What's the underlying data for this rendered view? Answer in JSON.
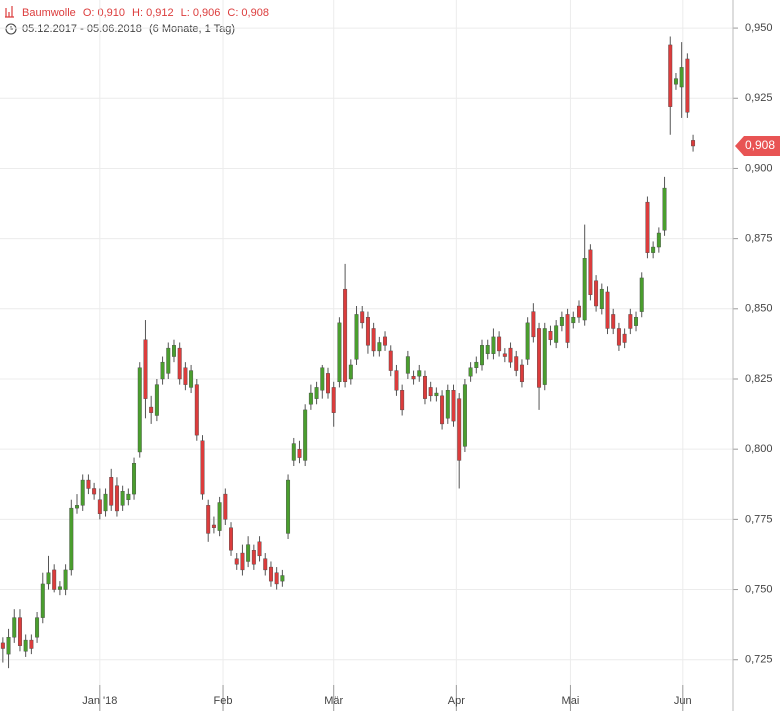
{
  "chart_data": {
    "type": "candlestick",
    "title": "Baumwolle",
    "ohlc_labels": [
      "O: 0,910",
      "H: 0,912",
      "L: 0,906",
      "C: 0,908"
    ],
    "subtitle": "05.12.2017 - 05.06.2018",
    "period": "(6 Monate, 1 Tag)",
    "up_color": "#4a9e2e",
    "down_color": "#dc3c3c",
    "open": [
      0.731,
      0.727,
      0.733,
      0.74,
      0.728,
      0.732,
      0.733,
      0.74,
      0.752,
      0.757,
      0.75,
      0.75,
      0.757,
      0.779,
      0.78,
      0.789,
      0.786,
      0.782,
      0.778,
      0.79,
      0.787,
      0.78,
      0.782,
      0.784,
      0.799,
      0.839,
      0.815,
      0.812,
      0.825,
      0.827,
      0.833,
      0.836,
      0.829,
      0.822,
      0.823,
      0.803,
      0.78,
      0.773,
      0.771,
      0.784,
      0.772,
      0.761,
      0.763,
      0.76,
      0.764,
      0.767,
      0.761,
      0.758,
      0.756,
      0.753,
      0.77,
      0.796,
      0.8,
      0.796,
      0.816,
      0.818,
      0.821,
      0.827,
      0.822,
      0.824,
      0.857,
      0.825,
      0.832,
      0.849,
      0.847,
      0.843,
      0.835,
      0.84,
      0.835,
      0.828,
      0.821,
      0.827,
      0.826,
      0.826,
      0.826,
      0.822,
      0.819,
      0.819,
      0.811,
      0.821,
      0.818,
      0.801,
      0.826,
      0.829,
      0.83,
      0.834,
      0.834,
      0.84,
      0.834,
      0.836,
      0.833,
      0.83,
      0.832,
      0.849,
      0.843,
      0.823,
      0.842,
      0.838,
      0.844,
      0.848,
      0.845,
      0.851,
      0.846,
      0.871,
      0.86,
      0.85,
      0.856,
      0.848,
      0.843,
      0.841,
      0.848,
      0.844,
      0.849,
      0.888,
      0.87,
      0.872,
      0.878,
      0.944,
      0.93,
      0.929,
      0.939,
      0.91
    ],
    "high": [
      0.733,
      0.736,
      0.743,
      0.743,
      0.734,
      0.734,
      0.742,
      0.756,
      0.762,
      0.759,
      0.753,
      0.759,
      0.782,
      0.784,
      0.791,
      0.791,
      0.788,
      0.786,
      0.786,
      0.793,
      0.79,
      0.787,
      0.786,
      0.797,
      0.831,
      0.846,
      0.819,
      0.825,
      0.833,
      0.838,
      0.839,
      0.838,
      0.831,
      0.83,
      0.825,
      0.805,
      0.782,
      0.776,
      0.783,
      0.786,
      0.774,
      0.763,
      0.766,
      0.769,
      0.766,
      0.769,
      0.763,
      0.76,
      0.758,
      0.757,
      0.791,
      0.804,
      0.803,
      0.816,
      0.823,
      0.824,
      0.83,
      0.829,
      0.824,
      0.847,
      0.866,
      0.832,
      0.851,
      0.851,
      0.849,
      0.845,
      0.84,
      0.842,
      0.837,
      0.83,
      0.823,
      0.835,
      0.828,
      0.83,
      0.828,
      0.824,
      0.822,
      0.821,
      0.823,
      0.823,
      0.82,
      0.825,
      0.831,
      0.833,
      0.839,
      0.839,
      0.843,
      0.842,
      0.836,
      0.838,
      0.835,
      0.832,
      0.847,
      0.852,
      0.845,
      0.845,
      0.844,
      0.846,
      0.849,
      0.85,
      0.849,
      0.853,
      0.88,
      0.873,
      0.862,
      0.859,
      0.858,
      0.85,
      0.845,
      0.843,
      0.85,
      0.849,
      0.863,
      0.89,
      0.874,
      0.879,
      0.897,
      0.947,
      0.934,
      0.945,
      0.941,
      0.912
    ],
    "low": [
      0.724,
      0.722,
      0.731,
      0.728,
      0.726,
      0.727,
      0.731,
      0.738,
      0.75,
      0.749,
      0.748,
      0.748,
      0.755,
      0.777,
      0.778,
      0.784,
      0.782,
      0.775,
      0.776,
      0.778,
      0.776,
      0.778,
      0.78,
      0.782,
      0.797,
      0.811,
      0.809,
      0.81,
      0.823,
      0.825,
      0.831,
      0.823,
      0.821,
      0.82,
      0.803,
      0.782,
      0.767,
      0.77,
      0.769,
      0.773,
      0.762,
      0.757,
      0.755,
      0.758,
      0.757,
      0.76,
      0.755,
      0.751,
      0.75,
      0.751,
      0.768,
      0.794,
      0.795,
      0.794,
      0.814,
      0.816,
      0.818,
      0.818,
      0.808,
      0.822,
      0.822,
      0.823,
      0.83,
      0.843,
      0.834,
      0.833,
      0.833,
      0.835,
      0.826,
      0.819,
      0.812,
      0.825,
      0.823,
      0.824,
      0.816,
      0.817,
      0.817,
      0.807,
      0.809,
      0.808,
      0.786,
      0.799,
      0.824,
      0.827,
      0.828,
      0.832,
      0.832,
      0.833,
      0.831,
      0.829,
      0.826,
      0.822,
      0.83,
      0.838,
      0.814,
      0.821,
      0.837,
      0.836,
      0.842,
      0.836,
      0.843,
      0.845,
      0.844,
      0.853,
      0.849,
      0.848,
      0.841,
      0.841,
      0.835,
      0.836,
      0.841,
      0.842,
      0.847,
      0.868,
      0.868,
      0.87,
      0.876,
      0.912,
      0.928,
      0.918,
      0.918,
      0.906
    ],
    "close": [
      0.729,
      0.733,
      0.74,
      0.73,
      0.732,
      0.729,
      0.74,
      0.752,
      0.756,
      0.75,
      0.751,
      0.757,
      0.779,
      0.78,
      0.789,
      0.786,
      0.784,
      0.777,
      0.784,
      0.78,
      0.778,
      0.785,
      0.784,
      0.795,
      0.829,
      0.818,
      0.813,
      0.823,
      0.831,
      0.836,
      0.837,
      0.825,
      0.823,
      0.828,
      0.805,
      0.784,
      0.77,
      0.772,
      0.781,
      0.775,
      0.764,
      0.759,
      0.757,
      0.766,
      0.759,
      0.762,
      0.757,
      0.753,
      0.752,
      0.755,
      0.789,
      0.802,
      0.797,
      0.814,
      0.82,
      0.822,
      0.829,
      0.82,
      0.813,
      0.845,
      0.824,
      0.83,
      0.848,
      0.845,
      0.837,
      0.835,
      0.838,
      0.837,
      0.828,
      0.821,
      0.814,
      0.833,
      0.825,
      0.828,
      0.818,
      0.819,
      0.82,
      0.809,
      0.821,
      0.81,
      0.796,
      0.823,
      0.829,
      0.831,
      0.837,
      0.837,
      0.84,
      0.835,
      0.833,
      0.831,
      0.828,
      0.824,
      0.845,
      0.84,
      0.822,
      0.843,
      0.839,
      0.844,
      0.847,
      0.838,
      0.847,
      0.847,
      0.868,
      0.855,
      0.851,
      0.857,
      0.843,
      0.843,
      0.837,
      0.838,
      0.843,
      0.847,
      0.861,
      0.87,
      0.872,
      0.877,
      0.893,
      0.922,
      0.932,
      0.936,
      0.92,
      0.908
    ],
    "xlim": [
      -0.5,
      128
    ],
    "xticks": [
      {
        "value": 17,
        "label": "Jan '18"
      },
      {
        "value": 38.6,
        "label": "Feb"
      },
      {
        "value": 58,
        "label": "Mär"
      },
      {
        "value": 79.5,
        "label": "Apr"
      },
      {
        "value": 99.5,
        "label": "Mai"
      },
      {
        "value": 119.2,
        "label": "Jun"
      }
    ],
    "ylim": [
      0.716,
      0.96
    ],
    "yticks": [
      {
        "value": 0.725,
        "label": "0,725"
      },
      {
        "value": 0.75,
        "label": "0,750"
      },
      {
        "value": 0.775,
        "label": "0,775"
      },
      {
        "value": 0.8,
        "label": "0,800"
      },
      {
        "value": 0.825,
        "label": "0,825"
      },
      {
        "value": 0.85,
        "label": "0,850"
      },
      {
        "value": 0.875,
        "label": "0,875"
      },
      {
        "value": 0.9,
        "label": "0,900"
      },
      {
        "value": 0.925,
        "label": "0,925"
      },
      {
        "value": 0.95,
        "label": "0,950"
      }
    ],
    "last_price": {
      "value": 0.908,
      "label": "0,908"
    },
    "grid": true
  }
}
